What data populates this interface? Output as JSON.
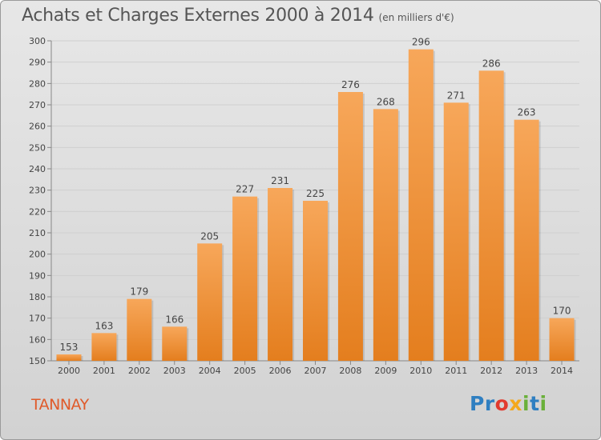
{
  "header": {
    "title": "Achats et Charges Externes 2000 à 2014",
    "subtitle": "(en milliers d'€)"
  },
  "footer": {
    "commune": "TANNAY",
    "logo_text": "Proxiti"
  },
  "colors": {
    "bar_top": "#f7a75a",
    "bar_bottom": "#e47e1e",
    "commune_text": "#e05a2a",
    "grid": "#cfcfcf"
  },
  "chart_data": {
    "type": "bar",
    "categories": [
      "2000",
      "2001",
      "2002",
      "2003",
      "2004",
      "2005",
      "2006",
      "2007",
      "2008",
      "2009",
      "2010",
      "2011",
      "2012",
      "2013",
      "2014"
    ],
    "values": [
      153,
      163,
      179,
      166,
      205,
      227,
      231,
      225,
      276,
      268,
      296,
      271,
      286,
      263,
      170
    ],
    "ylim": [
      150,
      300
    ],
    "yticks": [
      150,
      160,
      170,
      180,
      190,
      200,
      210,
      220,
      230,
      240,
      250,
      260,
      270,
      280,
      290,
      300
    ],
    "grid": true,
    "legend": "none"
  }
}
